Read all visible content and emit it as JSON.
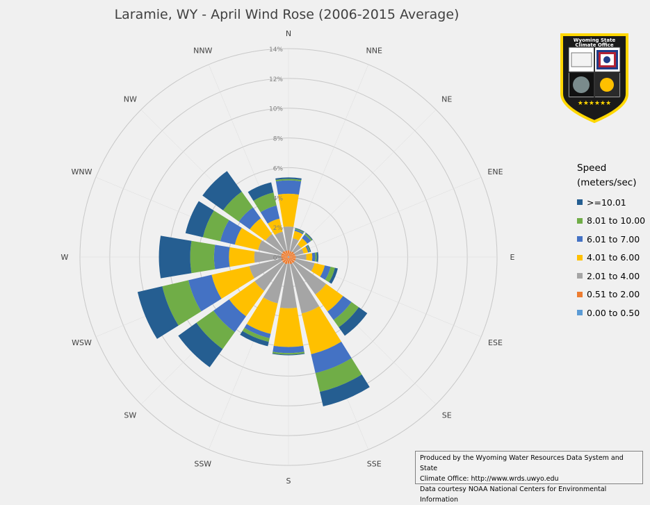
{
  "title": "Laramie, WY - April Wind Rose (2006-2015 Average)",
  "legend_title_line1": "Speed",
  "legend_title_line2": "(meters/sec)",
  "credits": {
    "line1": "Produced by the Wyoming Water Resources Data System and State",
    "line2": "Climate Office: http://www.wrds.uwyo.edu",
    "line3": "Data courtesy NOAA National Centers for Environmental Information"
  },
  "logo": {
    "text_line1": "Wyoming State",
    "text_line2": "Climate Office",
    "stars": "★★★★★★"
  },
  "chart_data": {
    "type": "stacked-radar-bar",
    "title": "Laramie, WY - April Wind Rose (2006-2015 Average)",
    "directions": [
      "N",
      "NNE",
      "NE",
      "ENE",
      "E",
      "ESE",
      "SE",
      "SSE",
      "S",
      "SSW",
      "SW",
      "WSW",
      "W",
      "WNW",
      "NW",
      "NNW"
    ],
    "ring_labels": [
      "0%",
      "2%",
      "4%",
      "6%",
      "8%",
      "10%",
      "12%",
      "14%"
    ],
    "rmax_percent": 14,
    "grid": true,
    "legend_placement": "right",
    "series": [
      {
        "name": "0.00 to 0.50",
        "color": "#5b9bd5",
        "values": [
          0.05,
          0.05,
          0.05,
          0.05,
          0.05,
          0.05,
          0.05,
          0.05,
          0.05,
          0.05,
          0.05,
          0.05,
          0.05,
          0.05,
          0.05,
          0.05
        ]
      },
      {
        "name": "0.51 to 2.00",
        "color": "#ed7d31",
        "values": [
          0.4,
          0.35,
          0.4,
          0.4,
          0.45,
          0.45,
          0.45,
          0.45,
          0.4,
          0.45,
          0.45,
          0.45,
          0.45,
          0.45,
          0.45,
          0.4
        ]
      },
      {
        "name": "2.01 to 4.00",
        "color": "#a5a5a5",
        "values": [
          1.6,
          0.9,
          0.6,
          0.6,
          0.7,
          1.3,
          2.6,
          3.4,
          3.0,
          2.7,
          2.3,
          2.2,
          1.8,
          1.6,
          1.4,
          1.3
        ]
      },
      {
        "name": "4.01 to 6.00",
        "color": "#ffc000",
        "values": [
          2.2,
          0.5,
          0.5,
          0.3,
          0.4,
          0.7,
          1.4,
          2.8,
          2.6,
          2.1,
          2.1,
          2.6,
          1.7,
          1.6,
          1.3,
          0.9
        ]
      },
      {
        "name": "6.01 to 7.00",
        "color": "#4472c4",
        "values": [
          0.9,
          0.1,
          0.3,
          0.1,
          0.2,
          0.4,
          0.7,
          1.3,
          0.4,
          0.3,
          1.3,
          1.6,
          1.0,
          1.0,
          0.9,
          0.9
        ]
      },
      {
        "name": "8.01 to 10.00",
        "color": "#70ad47",
        "values": [
          0.1,
          0.05,
          0.1,
          0.05,
          0.1,
          0.3,
          0.6,
          1.3,
          0.1,
          0.25,
          1.4,
          1.8,
          1.6,
          1.2,
          1.3,
          0.9
        ]
      },
      {
        "name": ">=10.01",
        "color": "#255e91",
        "values": [
          0.1,
          0.05,
          0.05,
          0.05,
          0.1,
          0.2,
          0.7,
          1.0,
          0.05,
          0.3,
          1.5,
          1.7,
          2.1,
          1.2,
          1.7,
          0.7
        ]
      }
    ]
  }
}
